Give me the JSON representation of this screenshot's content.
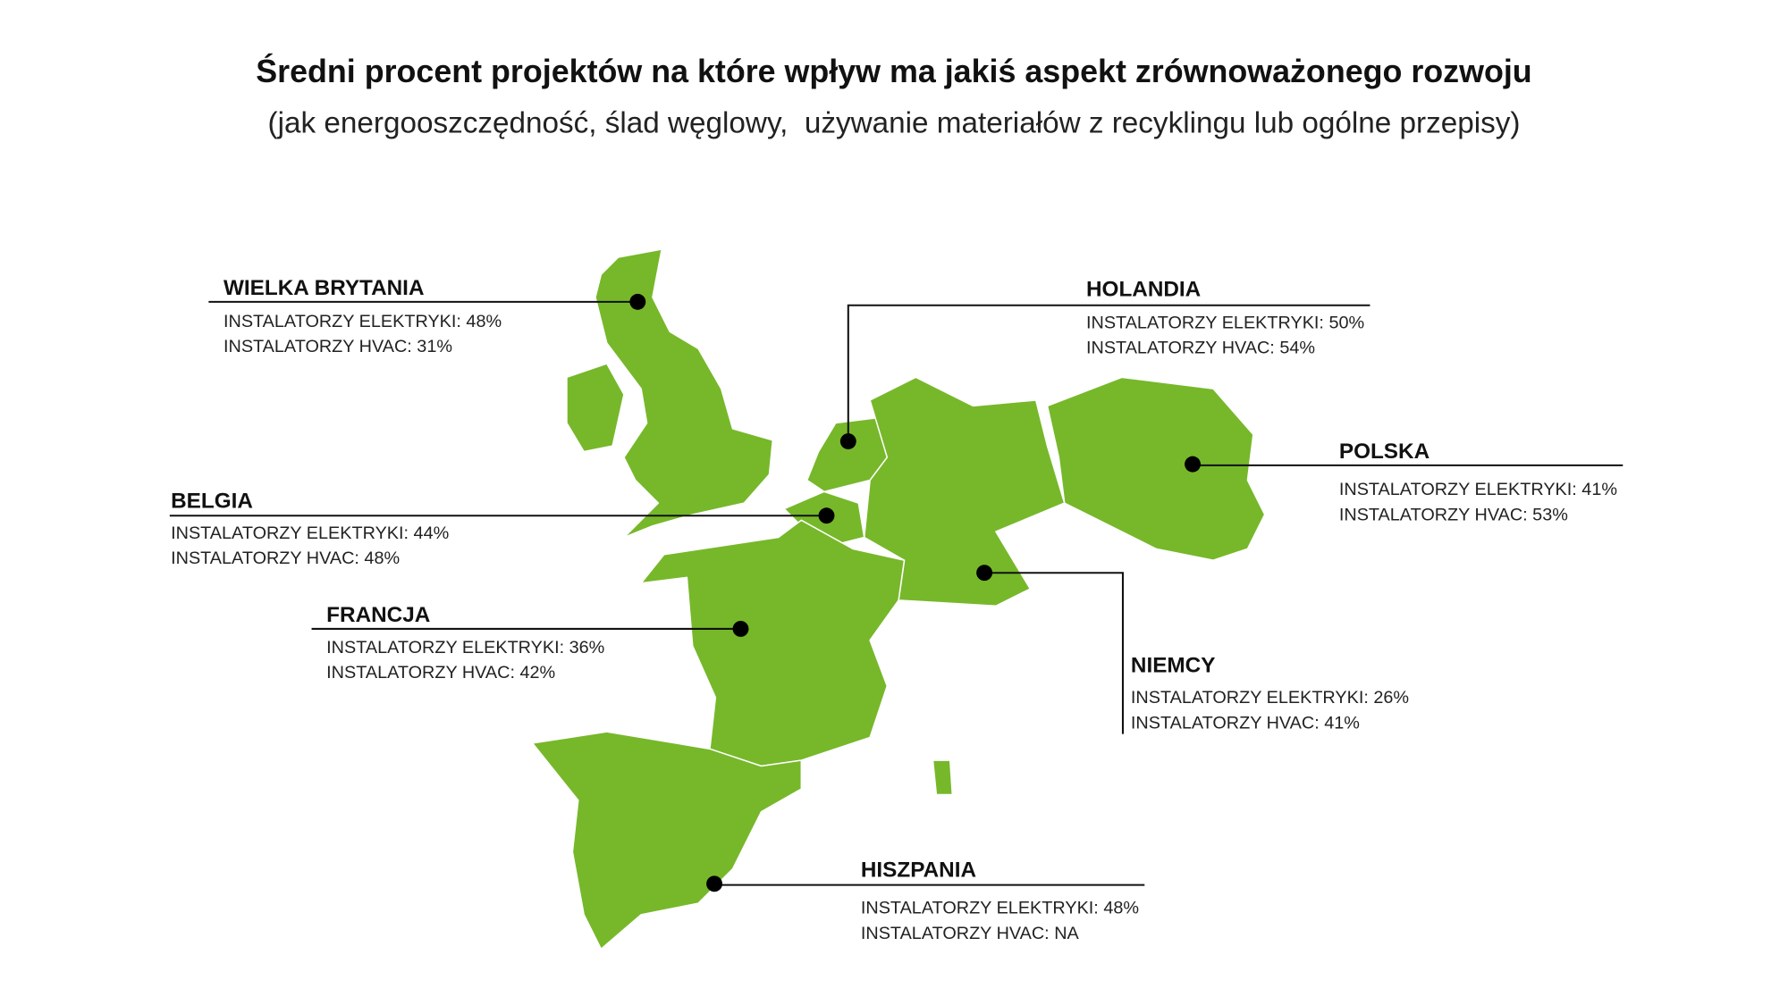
{
  "header": {
    "title": "Średni procent projektów na które wpływ ma jakiś aspekt zrównoważonego rozwoju",
    "subtitle": "(jak energooszczędność, ślad węglowy,  używanie materiałów z recyklingu lub ogólne przepisy)"
  },
  "countries": [
    {
      "name": "WIELKA BRYTANIA",
      "lines": [
        "INSTALATORZY ELEKTRYKI: 48%",
        "INSTALATORZY HVAC: 31%"
      ]
    },
    {
      "name": "HOLANDIA",
      "lines": [
        "INSTALATORZY ELEKTRYKI: 50%",
        "INSTALATORZY HVAC: 54%"
      ]
    },
    {
      "name": "POLSKA",
      "lines": [
        "INSTALATORZY ELEKTRYKI: 41%",
        "INSTALATORZY HVAC: 53%"
      ]
    },
    {
      "name": "BELGIA",
      "lines": [
        "INSTALATORZY ELEKTRYKI: 44%",
        "INSTALATORZY HVAC: 48%"
      ]
    },
    {
      "name": "FRANCJA",
      "lines": [
        "INSTALATORZY ELEKTRYKI: 36%",
        "INSTALATORZY HVAC: 42%"
      ]
    },
    {
      "name": "NIEMCY",
      "lines": [
        "INSTALATORZY ELEKTRYKI: 26%",
        "INSTALATORZY HVAC: 41%"
      ]
    },
    {
      "name": "HISZPANIA",
      "lines": [
        "INSTALATORZY ELEKTRYKI: 48%",
        "INSTALATORZY HVAC: NA"
      ]
    }
  ]
}
